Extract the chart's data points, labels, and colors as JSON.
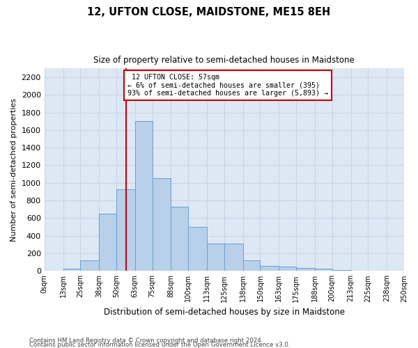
{
  "title1": "12, UFTON CLOSE, MAIDSTONE, ME15 8EH",
  "title2": "Size of property relative to semi-detached houses in Maidstone",
  "xlabel": "Distribution of semi-detached houses by size in Maidstone",
  "ylabel": "Number of semi-detached properties",
  "footer1": "Contains HM Land Registry data © Crown copyright and database right 2024.",
  "footer2": "Contains public sector information licensed under the Open Government Licence v3.0.",
  "property_size": 57,
  "property_label": "12 UFTON CLOSE: 57sqm",
  "smaller_pct": "6%",
  "smaller_n": 395,
  "larger_pct": "93%",
  "larger_n": 5893,
  "bar_color": "#b8d0ea",
  "bar_edge_color": "#6a9fcb",
  "vline_color": "#cc0000",
  "annotation_box_color": "#cc0000",
  "bins": [
    0,
    13,
    25,
    38,
    50,
    63,
    75,
    88,
    100,
    113,
    125,
    138,
    150,
    163,
    175,
    188,
    200,
    213,
    225,
    238,
    250
  ],
  "counts": [
    0,
    25,
    120,
    650,
    930,
    1700,
    1050,
    730,
    500,
    310,
    310,
    120,
    60,
    50,
    35,
    30,
    10,
    5,
    2,
    1
  ],
  "ylim": [
    0,
    2300
  ],
  "yticks": [
    0,
    200,
    400,
    600,
    800,
    1000,
    1200,
    1400,
    1600,
    1800,
    2000,
    2200
  ],
  "xtick_labels": [
    "0sqm",
    "13sqm",
    "25sqm",
    "38sqm",
    "50sqm",
    "63sqm",
    "75sqm",
    "88sqm",
    "100sqm",
    "113sqm",
    "125sqm",
    "138sqm",
    "150sqm",
    "163sqm",
    "175sqm",
    "188sqm",
    "200sqm",
    "213sqm",
    "225sqm",
    "238sqm",
    "250sqm"
  ],
  "grid_color": "#c8d4e8",
  "background_color": "#dde8f5"
}
